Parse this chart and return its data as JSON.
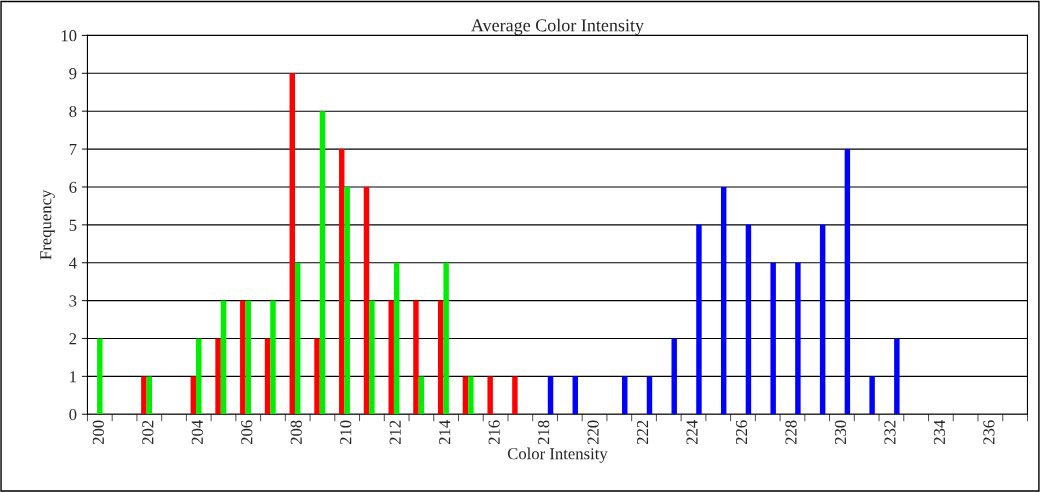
{
  "chart_data": {
    "type": "bar",
    "title": "Average Color Intensity",
    "xlabel": "Color Intensity",
    "ylabel": "Frequency",
    "categories": [
      "200",
      null,
      "202",
      null,
      "204",
      null,
      "206",
      null,
      "208",
      null,
      "210",
      null,
      "212",
      null,
      "214",
      null,
      "216",
      null,
      "218",
      null,
      "220",
      null,
      "222",
      null,
      "224",
      null,
      "226",
      null,
      "228",
      null,
      "230",
      null,
      "232",
      null,
      "234",
      null,
      "236",
      null
    ],
    "series": [
      {
        "color": "#ff0000",
        "values": [
          0,
          0,
          1,
          0,
          1,
          2,
          3,
          2,
          9,
          2,
          7,
          6,
          3,
          3,
          3,
          1,
          1,
          1,
          0,
          0,
          0,
          0,
          0,
          0,
          0,
          0,
          0,
          0,
          0,
          0,
          0,
          0,
          0,
          0,
          0,
          0,
          0,
          0
        ]
      },
      {
        "color": "#00ee00",
        "values": [
          2,
          0,
          1,
          0,
          2,
          3,
          3,
          3,
          4,
          8,
          6,
          3,
          4,
          1,
          4,
          1,
          0,
          0,
          0,
          0,
          0,
          0,
          0,
          0,
          0,
          0,
          0,
          0,
          0,
          0,
          0,
          0,
          0,
          0,
          0,
          0,
          0,
          0
        ]
      },
      {
        "color": "#0000ff",
        "values": [
          0,
          0,
          0,
          0,
          0,
          0,
          0,
          0,
          0,
          0,
          0,
          0,
          0,
          0,
          0,
          0,
          0,
          0,
          1,
          1,
          0,
          1,
          1,
          2,
          5,
          6,
          5,
          4,
          4,
          5,
          7,
          1,
          2,
          0,
          0,
          0,
          0,
          0
        ]
      }
    ],
    "ylim": [
      0,
      10
    ],
    "yticks": [
      0,
      1,
      2,
      3,
      4,
      5,
      6,
      7,
      8,
      9,
      10
    ],
    "grid": "y",
    "legend": false
  }
}
